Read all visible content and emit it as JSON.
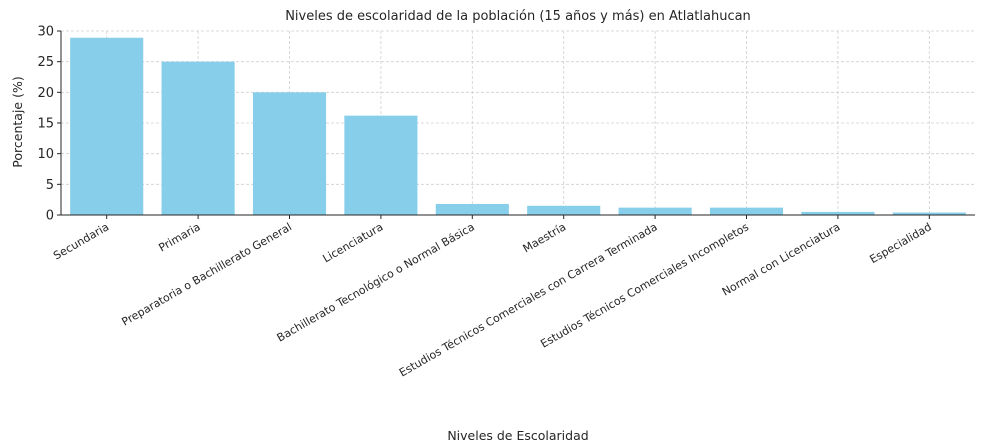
{
  "chart_data": {
    "type": "bar",
    "title": "Niveles de escolaridad de la población (15 años y más) en Atlatlahucan",
    "xlabel": "Niveles de Escolaridad",
    "ylabel": "Porcentaje (%)",
    "categories": [
      "Secundaria",
      "Primaria",
      "Preparatoria o Bachillerato General",
      "Licenciatura",
      "Bachillerato Tecnológico o Normal Básica",
      "Maestría",
      "Estudios Técnicos Comerciales con Carrera Terminada",
      "Estudios Técnicos Comerciales Incompletos",
      "Normal con Licenciatura",
      "Especialidad"
    ],
    "values": [
      28.9,
      25.0,
      20.0,
      16.2,
      1.8,
      1.5,
      1.2,
      1.2,
      0.5,
      0.4
    ],
    "ylim": [
      0,
      30
    ],
    "yticks": [
      "0",
      "5",
      "10",
      "15",
      "20",
      "25",
      "30"
    ],
    "grid": true,
    "bar_color": "#87ceeb"
  }
}
